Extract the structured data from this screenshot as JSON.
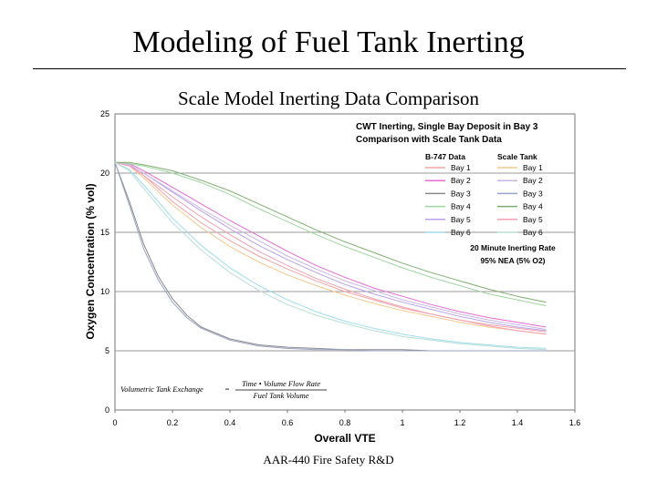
{
  "slide": {
    "title": "Modeling of Fuel Tank Inerting",
    "subtitle": "Scale Model Inerting Data Comparison",
    "footer": "AAR-440 Fire Safety R&D"
  },
  "chart_data": {
    "type": "line",
    "title_lines": [
      "CWT Inerting, Single Bay Deposit in Bay 3",
      "Comparison with Scale Tank Data"
    ],
    "xlabel": "Overall VTE",
    "ylabel": "Oxygen Concentration (% vol)",
    "xlim": [
      0,
      1.6
    ],
    "ylim": [
      0,
      25
    ],
    "xticks": [
      "0",
      "0.2",
      "0.4",
      "0.6",
      "0.8",
      "1",
      "1.2",
      "1.4",
      "1.6"
    ],
    "yticks": [
      "0",
      "5",
      "10",
      "15",
      "20",
      "25"
    ],
    "grid": "horizontal",
    "legend_position": "top-right",
    "legend": {
      "group_b747": "B-747 Data",
      "group_scale": "Scale Tank",
      "note_lines": [
        "20 Minute Inerting Rate",
        "95% NEA (5% O2)"
      ]
    },
    "formula": {
      "lhs": "Volumetric Tank Exchange",
      "eq": "=",
      "numerator": "Time • Volume Flow Rate",
      "denominator": "Fuel Tank Volume"
    },
    "series": [
      {
        "name": "Bay 1",
        "group": "B-747 Data",
        "color": "#f2a3a3",
        "x": [
          0,
          0.05,
          0.1,
          0.2,
          0.3,
          0.4,
          0.5,
          0.6,
          0.7,
          0.8,
          0.9,
          1.0,
          1.1,
          1.2,
          1.3,
          1.4,
          1.5
        ],
        "y": [
          20.9,
          20.7,
          19.8,
          17.6,
          15.8,
          14.3,
          13.0,
          11.9,
          10.9,
          10.0,
          9.3,
          8.6,
          8.1,
          7.6,
          7.2,
          6.9,
          6.6
        ]
      },
      {
        "name": "Bay 2",
        "group": "B-747 Data",
        "color": "#e86ad0",
        "x": [
          0,
          0.05,
          0.1,
          0.2,
          0.3,
          0.4,
          0.5,
          0.6,
          0.7,
          0.8,
          0.9,
          1.0,
          1.1,
          1.2,
          1.3,
          1.4,
          1.5
        ],
        "y": [
          20.9,
          20.8,
          20.2,
          18.8,
          17.4,
          16.0,
          14.7,
          13.4,
          12.2,
          11.2,
          10.3,
          9.6,
          8.9,
          8.3,
          7.8,
          7.4,
          7.0
        ]
      },
      {
        "name": "Bay 3",
        "group": "B-747 Data",
        "color": "#8a8a8a",
        "x": [
          0,
          0.05,
          0.1,
          0.15,
          0.2,
          0.25,
          0.3,
          0.4,
          0.5,
          0.6,
          0.7,
          0.8,
          0.9,
          1.0,
          1.1,
          1.2,
          1.3,
          1.4,
          1.5
        ],
        "y": [
          20.9,
          17.6,
          14.0,
          11.3,
          9.4,
          8.0,
          7.0,
          6.0,
          5.5,
          5.3,
          5.2,
          5.1,
          5.1,
          5.1,
          5.0,
          5.0,
          5.0,
          5.0,
          5.0
        ]
      },
      {
        "name": "Bay 4",
        "group": "B-747 Data",
        "color": "#9fd69f",
        "x": [
          0,
          0.05,
          0.1,
          0.2,
          0.3,
          0.4,
          0.5,
          0.6,
          0.7,
          0.8,
          0.9,
          1.0,
          1.1,
          1.2,
          1.3,
          1.4,
          1.5
        ],
        "y": [
          20.9,
          20.8,
          20.6,
          20.0,
          19.2,
          18.2,
          17.0,
          15.9,
          14.8,
          13.8,
          12.9,
          12.0,
          11.2,
          10.5,
          9.8,
          9.3,
          8.8
        ]
      },
      {
        "name": "Bay 5",
        "group": "B-747 Data",
        "color": "#b9a2ec",
        "x": [
          0,
          0.05,
          0.1,
          0.2,
          0.3,
          0.4,
          0.5,
          0.6,
          0.7,
          0.8,
          0.9,
          1.0,
          1.1,
          1.2,
          1.3,
          1.4,
          1.5
        ],
        "y": [
          20.9,
          20.7,
          20.0,
          18.4,
          16.8,
          15.3,
          13.9,
          12.7,
          11.6,
          10.6,
          9.8,
          9.1,
          8.5,
          7.9,
          7.4,
          7.0,
          6.7
        ]
      },
      {
        "name": "Bay 6",
        "group": "B-747 Data",
        "color": "#9fdcef",
        "x": [
          0,
          0.05,
          0.1,
          0.2,
          0.3,
          0.4,
          0.5,
          0.6,
          0.7,
          0.8,
          0.9,
          1.0,
          1.1,
          1.2,
          1.3,
          1.4,
          1.5
        ],
        "y": [
          20.9,
          20.3,
          19.0,
          16.2,
          13.9,
          12.0,
          10.5,
          9.3,
          8.3,
          7.5,
          6.9,
          6.4,
          6.0,
          5.7,
          5.5,
          5.3,
          5.2
        ]
      },
      {
        "name": "Bay 1",
        "group": "Scale Tank",
        "color": "#f5c98f",
        "x": [
          0,
          0.05,
          0.1,
          0.2,
          0.3,
          0.4,
          0.5,
          0.6,
          0.7,
          0.8,
          0.9,
          1.0,
          1.1,
          1.2,
          1.3,
          1.4,
          1.5
        ],
        "y": [
          20.9,
          20.6,
          19.6,
          17.3,
          15.4,
          13.8,
          12.5,
          11.4,
          10.5,
          9.7,
          9.0,
          8.4,
          7.9,
          7.4,
          7.0,
          6.7,
          6.4
        ]
      },
      {
        "name": "Bay 2",
        "group": "Scale Tank",
        "color": "#c9b5e6",
        "x": [
          0,
          0.05,
          0.1,
          0.2,
          0.3,
          0.4,
          0.5,
          0.6,
          0.7,
          0.8,
          0.9,
          1.0,
          1.1,
          1.2,
          1.3,
          1.4,
          1.5
        ],
        "y": [
          20.9,
          20.7,
          20.0,
          18.5,
          17.0,
          15.6,
          14.3,
          13.0,
          11.9,
          10.9,
          10.1,
          9.3,
          8.7,
          8.1,
          7.6,
          7.2,
          6.8
        ]
      },
      {
        "name": "Bay 3",
        "group": "Scale Tank",
        "color": "#9aa3c8",
        "x": [
          0,
          0.05,
          0.1,
          0.15,
          0.2,
          0.25,
          0.3,
          0.4,
          0.5,
          0.6,
          0.7,
          0.8,
          0.9,
          1.0,
          1.1,
          1.2,
          1.3,
          1.4,
          1.5
        ],
        "y": [
          20.9,
          17.3,
          13.6,
          11.0,
          9.1,
          7.8,
          6.9,
          5.9,
          5.4,
          5.2,
          5.1,
          5.1,
          5.0,
          5.0,
          5.0,
          5.0,
          5.0,
          5.0,
          5.0
        ]
      },
      {
        "name": "Bay 4",
        "group": "Scale Tank",
        "color": "#7fae6f",
        "x": [
          0,
          0.05,
          0.1,
          0.2,
          0.3,
          0.4,
          0.5,
          0.6,
          0.7,
          0.8,
          0.9,
          1.0,
          1.1,
          1.2,
          1.3,
          1.4,
          1.5
        ],
        "y": [
          20.9,
          20.9,
          20.7,
          20.2,
          19.4,
          18.5,
          17.4,
          16.3,
          15.2,
          14.2,
          13.3,
          12.4,
          11.6,
          10.9,
          10.2,
          9.6,
          9.1
        ]
      },
      {
        "name": "Bay 5",
        "group": "Scale Tank",
        "color": "#f29fb5",
        "x": [
          0,
          0.05,
          0.1,
          0.2,
          0.3,
          0.4,
          0.5,
          0.6,
          0.7,
          0.8,
          0.9,
          1.0,
          1.1,
          1.2,
          1.3,
          1.4,
          1.5
        ],
        "y": [
          20.9,
          20.6,
          19.8,
          18.0,
          16.3,
          14.8,
          13.4,
          12.2,
          11.1,
          10.2,
          9.4,
          8.7,
          8.1,
          7.6,
          7.1,
          6.7,
          6.4
        ]
      },
      {
        "name": "Bay 6",
        "group": "Scale Tank",
        "color": "#b8e0d6",
        "x": [
          0,
          0.05,
          0.1,
          0.2,
          0.3,
          0.4,
          0.5,
          0.6,
          0.7,
          0.8,
          0.9,
          1.0,
          1.1,
          1.2,
          1.3,
          1.4,
          1.5
        ],
        "y": [
          20.9,
          20.2,
          18.7,
          15.8,
          13.5,
          11.6,
          10.1,
          8.9,
          8.0,
          7.3,
          6.7,
          6.2,
          5.9,
          5.6,
          5.4,
          5.2,
          5.1
        ]
      }
    ]
  }
}
